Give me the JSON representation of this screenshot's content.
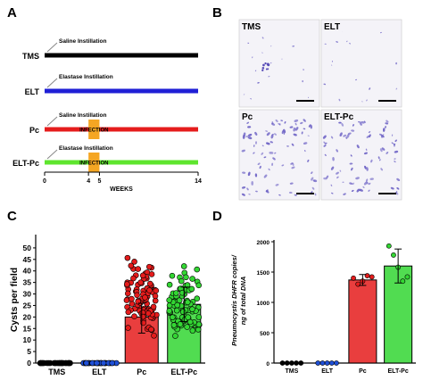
{
  "panel_letters": [
    "A",
    "B",
    "C",
    "D"
  ],
  "panel_a": {
    "timelines": [
      {
        "label": "TMS",
        "instillation": "Saline Instillation",
        "color": "#000000",
        "infection": false
      },
      {
        "label": "ELT",
        "instillation": "Elastase Instillation",
        "color": "#1f1fd6",
        "infection": false
      },
      {
        "label": "Pc",
        "instillation": "Saline Instillation",
        "color": "#e51c1c",
        "infection": true
      },
      {
        "label": "ELT-Pc",
        "instillation": "Elastase Instillation",
        "color": "#5ee52e",
        "infection": true
      }
    ],
    "infection_label": "INFECTION",
    "infection_color": "#f5a623",
    "axis_ticks": [
      "0",
      "4",
      "5",
      "14"
    ],
    "axis_tick_weeks": [
      0,
      4,
      5,
      14
    ],
    "axis_max_weeks": 14,
    "infection_start_week": 4,
    "infection_end_week": 5,
    "axis_title": "WEEKS"
  },
  "panel_b": {
    "images": [
      {
        "label": "TMS",
        "cell_density": "sparse"
      },
      {
        "label": "ELT",
        "cell_density": "sparse"
      },
      {
        "label": "Pc",
        "cell_density": "dense"
      },
      {
        "label": "ELT-Pc",
        "cell_density": "dense"
      }
    ],
    "stain_color": "#6a5fc4",
    "background_color": "#f4f3f8"
  },
  "chart_data": [
    {
      "panel": "C",
      "type": "bar",
      "categories": [
        "TMS",
        "ELT",
        "Pc",
        "ELT-Pc"
      ],
      "values": [
        0,
        0,
        20,
        25.5
      ],
      "colors": [
        "#000000",
        "#1f4fd6",
        "#e51c1c",
        "#33d633"
      ],
      "error_upper": [
        0,
        0,
        26,
        33
      ],
      "error_lower": [
        0,
        0,
        13,
        18
      ],
      "points_per_group": [
        30,
        30,
        95,
        90
      ],
      "point_range": [
        [
          0,
          0
        ],
        [
          0,
          0
        ],
        [
          8,
          53
        ],
        [
          8,
          48
        ]
      ],
      "ylabel": "Cysts per field",
      "ylim": [
        0,
        55
      ],
      "yticks": [
        0,
        5,
        10,
        15,
        20,
        25,
        30,
        35,
        40,
        45,
        50
      ]
    },
    {
      "panel": "D",
      "type": "bar",
      "categories": [
        "TMS",
        "ELT",
        "Pc",
        "ELT-Pc"
      ],
      "values": [
        0,
        0,
        1370,
        1600
      ],
      "colors": [
        "#000000",
        "#1f4fd6",
        "#e51c1c",
        "#33d633"
      ],
      "error_upper": [
        0,
        0,
        1460,
        1880
      ],
      "error_lower": [
        0,
        0,
        1280,
        1320
      ],
      "points": [
        [
          0,
          0,
          0,
          0,
          0
        ],
        [
          0,
          0,
          0,
          0,
          0
        ],
        [
          1400,
          1300,
          1350,
          1440,
          1420
        ],
        [
          1930,
          1780,
          1580,
          1350,
          1420
        ]
      ],
      "ylabel_line1": "Pneumocystis DHFR copies/",
      "ylabel_line2": "ng of total DNA",
      "ylim": [
        0,
        2000
      ],
      "yticks": [
        0,
        500,
        1000,
        1500,
        2000
      ]
    }
  ]
}
